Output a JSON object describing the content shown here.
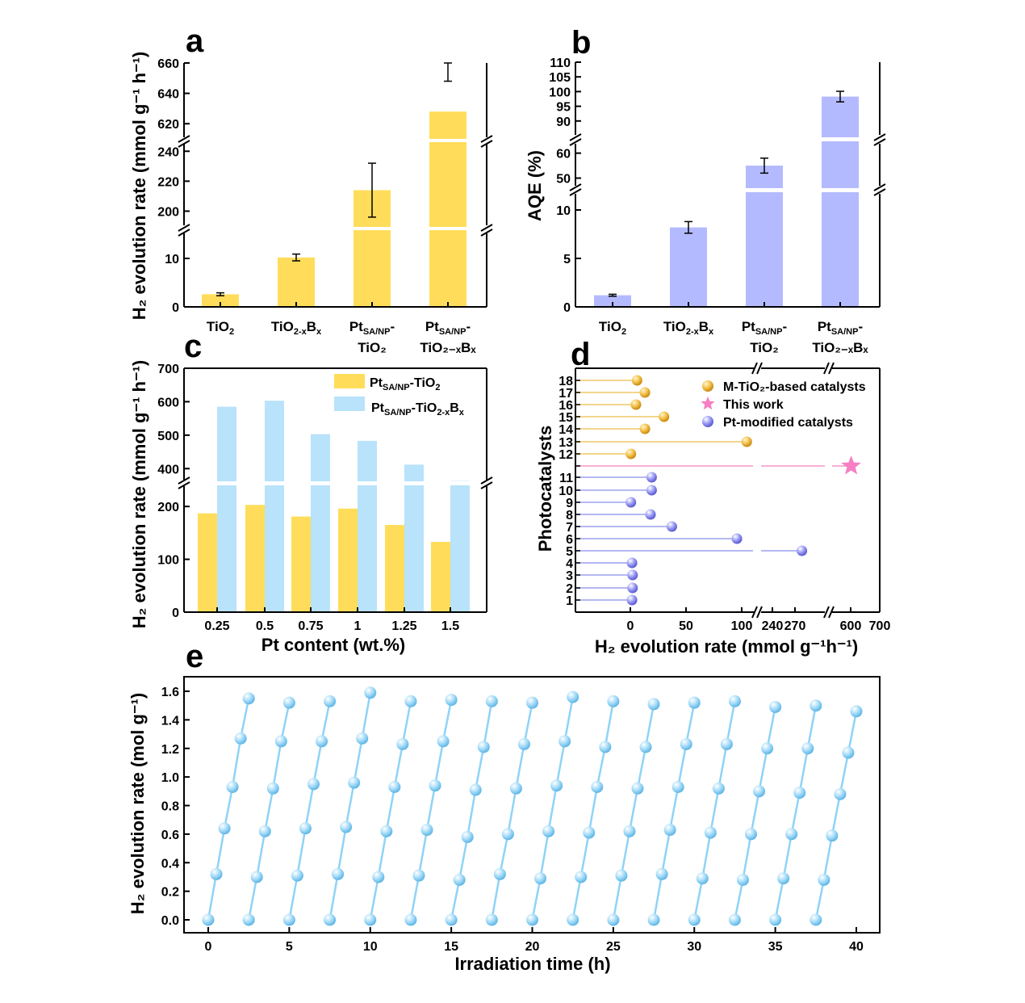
{
  "panels": {
    "a": "a",
    "b": "b",
    "c": "c",
    "d": "d",
    "e": "e"
  },
  "chart_data": [
    {
      "id": "a",
      "type": "bar",
      "categories": [
        {
          "main": "TiO",
          "sub": "2",
          "sub2": "",
          "tail": "",
          "line2": ""
        },
        {
          "main": "TiO",
          "sub": "2-x",
          "sub2": "x",
          "tail": "B",
          "line2": ""
        },
        {
          "main": "Pt",
          "sub": "SA/NP",
          "sub2": "",
          "tail": "-",
          "line2": "TiO₂"
        },
        {
          "main": "Pt",
          "sub": "SA/NP",
          "sub2": "",
          "tail": "-",
          "line2": "TiO₂₋ₓBₓ"
        }
      ],
      "values": [
        2.6,
        10.2,
        214,
        628
      ],
      "errors": [
        0.3,
        0.7,
        18,
        20
      ],
      "ylabel": "H₂ evolution rate (mmol g⁻¹ h⁻¹)",
      "ticks": [
        "0",
        "10",
        "200",
        "220",
        "240",
        "620",
        "640",
        "660"
      ],
      "color": "#ffdd5a"
    },
    {
      "id": "b",
      "type": "bar",
      "categories": [
        {
          "main": "TiO",
          "sub": "2",
          "sub2": "",
          "tail": "",
          "line2": ""
        },
        {
          "main": "TiO",
          "sub": "2-x",
          "sub2": "x",
          "tail": "B",
          "line2": ""
        },
        {
          "main": "Pt",
          "sub": "SA/NP",
          "sub2": "",
          "tail": "-",
          "line2": "TiO₂"
        },
        {
          "main": "Pt",
          "sub": "SA/NP",
          "sub2": "",
          "tail": "-",
          "line2": "TiO₂₋ₓBₓ"
        }
      ],
      "values": [
        1.2,
        8.2,
        55,
        98.3
      ],
      "errors": [
        0.1,
        0.6,
        3,
        1.8
      ],
      "ylabel": "AQE (%)",
      "ticks": [
        "0",
        "5",
        "10",
        "50",
        "60",
        "90",
        "95",
        "100",
        "105",
        "110"
      ],
      "color": "#b4baff"
    },
    {
      "id": "c",
      "type": "bar",
      "categories": [
        "0.25",
        "0.5",
        "0.75",
        "1",
        "1.25",
        "1.5"
      ],
      "series": [
        {
          "name": "Pt SA/NP -TiO₂",
          "values": [
            187,
            203,
            181,
            196,
            165,
            133
          ],
          "color": "#ffdd5a"
        },
        {
          "name": "Pt SA/NP -TiO₂₋ₓBₓ",
          "values": [
            585,
            603,
            503,
            483,
            412,
            363
          ],
          "color": "#b9e2fb"
        }
      ],
      "legend": [
        {
          "main": "Pt",
          "sub": "SA/NP",
          "rest": "-TiO",
          "sub2": "2",
          "rest2": "",
          "sub3": ""
        },
        {
          "main": "Pt",
          "sub": "SA/NP",
          "rest": "-TiO",
          "sub2": "2-x",
          "rest2": "B",
          "sub3": "x"
        }
      ],
      "xlabel": "Pt content (wt.%)",
      "ylabel": "H₂ evolution rate (mmol g⁻¹ h⁻¹)",
      "ticks": [
        "0",
        "100",
        "200",
        "400",
        "500",
        "600",
        "700"
      ]
    },
    {
      "id": "d",
      "type": "scatter",
      "ylabel": "Photocatalysts",
      "xlabel": "H₂ evolution rate (mmol g⁻¹h⁻¹)",
      "xticks": [
        "0",
        "50",
        "100",
        "240",
        "270",
        "600",
        "700"
      ],
      "legend": [
        "M-TiO₂-based catalysts",
        "This work",
        "Pt-modified catalysts"
      ],
      "points": [
        {
          "label": "1",
          "value": 1.5,
          "group": "Pt"
        },
        {
          "label": "2",
          "value": 2,
          "group": "Pt"
        },
        {
          "label": "3",
          "value": 2,
          "group": "Pt"
        },
        {
          "label": "4",
          "value": 1.5,
          "group": "Pt"
        },
        {
          "label": "5",
          "value": 262,
          "group": "Pt"
        },
        {
          "label": "6",
          "value": 95,
          "group": "Pt"
        },
        {
          "label": "7",
          "value": 37,
          "group": "Pt"
        },
        {
          "label": "8",
          "value": 18,
          "group": "Pt"
        },
        {
          "label": "9",
          "value": 0.5,
          "group": "Pt"
        },
        {
          "label": "10",
          "value": 19,
          "group": "Pt"
        },
        {
          "label": "11",
          "value": 19,
          "group": "Pt"
        },
        {
          "label": "",
          "value": 628,
          "group": "This"
        },
        {
          "label": "12",
          "value": 0.5,
          "group": "M"
        },
        {
          "label": "13",
          "value": 103,
          "group": "M"
        },
        {
          "label": "14",
          "value": 13,
          "group": "M"
        },
        {
          "label": "15",
          "value": 30,
          "group": "M"
        },
        {
          "label": "16",
          "value": 5,
          "group": "M"
        },
        {
          "label": "17",
          "value": 13,
          "group": "M"
        },
        {
          "label": "18",
          "value": 6,
          "group": "M"
        }
      ],
      "colors": {
        "M": "#f0b53a",
        "This": "#f77fc4",
        "Pt": "#8f8ff2",
        "Mline": "#f3d68c",
        "Thisline": "#f7b0d8",
        "Ptline": "#b5b8f2"
      }
    },
    {
      "id": "e",
      "type": "line",
      "xlabel": "Irradiation time (h)",
      "ylabel": "H₂ evolution rate (mol g⁻¹)",
      "xlim": [
        0,
        40
      ],
      "ylim": [
        0,
        1.6
      ],
      "xticks": [
        "0",
        "5",
        "10",
        "15",
        "20",
        "25",
        "30",
        "35",
        "40"
      ],
      "yticks": [
        "0.0",
        "0.2",
        "0.4",
        "0.6",
        "0.8",
        "1.0",
        "1.2",
        "1.4",
        "1.6"
      ],
      "cycles": [
        [
          0,
          0.32,
          0.64,
          0.93,
          1.27,
          1.55
        ],
        [
          0,
          0.3,
          0.62,
          0.92,
          1.25,
          1.52
        ],
        [
          0,
          0.31,
          0.64,
          0.95,
          1.25,
          1.53
        ],
        [
          0,
          0.32,
          0.65,
          0.96,
          1.27,
          1.59
        ],
        [
          0,
          0.3,
          0.62,
          0.93,
          1.23,
          1.53
        ],
        [
          0,
          0.31,
          0.63,
          0.94,
          1.25,
          1.54
        ],
        [
          0,
          0.28,
          0.58,
          0.91,
          1.21,
          1.53
        ],
        [
          0,
          0.32,
          0.6,
          0.92,
          1.23,
          1.52
        ],
        [
          0,
          0.29,
          0.62,
          0.94,
          1.25,
          1.56
        ],
        [
          0,
          0.3,
          0.61,
          0.93,
          1.21,
          1.53
        ],
        [
          0,
          0.31,
          0.62,
          0.92,
          1.21,
          1.51
        ],
        [
          0,
          0.32,
          0.63,
          0.93,
          1.23,
          1.52
        ],
        [
          0,
          0.29,
          0.61,
          0.92,
          1.23,
          1.53
        ],
        [
          0,
          0.28,
          0.6,
          0.9,
          1.2,
          1.49
        ],
        [
          0,
          0.29,
          0.6,
          0.89,
          1.2,
          1.5
        ],
        [
          0,
          0.28,
          0.59,
          0.88,
          1.17,
          1.46
        ]
      ],
      "color": "#8fd3f7"
    }
  ]
}
